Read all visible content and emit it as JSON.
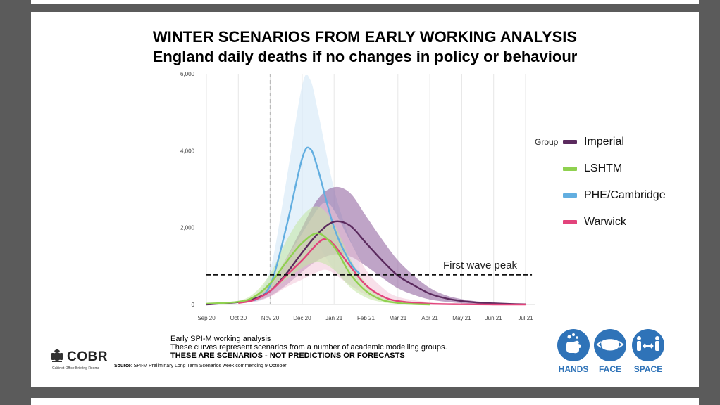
{
  "title_line1": "WINTER SCENARIOS FROM EARLY WORKING ANALYSIS",
  "title_line2": "England daily deaths if no changes in policy or behaviour",
  "chart_data": {
    "type": "line",
    "title": "England daily deaths if no changes in policy or behaviour",
    "x_ticks": [
      "Sep 20",
      "Oct 20",
      "Nov 20",
      "Dec 20",
      "Jan 21",
      "Feb 21",
      "Mar 21",
      "Apr 21",
      "May 21",
      "Jun 21",
      "Jul 21"
    ],
    "x_unit": "months since 1 Sep 2020",
    "y_ticks": [
      "0",
      "2,000",
      "4,000",
      "6,000"
    ],
    "ylim": [
      0,
      6000
    ],
    "legend_title": "Group",
    "marker_nov": 2.0,
    "series": [
      {
        "name": "Imperial",
        "color": "#5b2a5e",
        "band_color": "#8a5a99",
        "x": [
          0,
          1,
          1.5,
          2,
          2.5,
          3,
          3.5,
          4,
          4.5,
          5,
          5.5,
          6,
          6.5,
          7,
          7.5,
          8,
          8.5,
          9,
          9.5,
          10
        ],
        "values": [
          0,
          60,
          150,
          350,
          800,
          1350,
          1850,
          2150,
          2050,
          1600,
          1150,
          750,
          500,
          280,
          160,
          90,
          50,
          30,
          15,
          5
        ],
        "lower": [
          0,
          40,
          90,
          220,
          500,
          850,
          1150,
          1300,
          1250,
          1000,
          700,
          420,
          250,
          130,
          70,
          35,
          20,
          10,
          5,
          2
        ],
        "upper": [
          0,
          80,
          220,
          520,
          1200,
          2000,
          2750,
          3050,
          2900,
          2300,
          1700,
          1150,
          750,
          430,
          240,
          140,
          80,
          45,
          25,
          10
        ]
      },
      {
        "name": "LSHTM",
        "color": "#8fd14f",
        "band_color": "#c3e6a2",
        "x": [
          0,
          1,
          1.5,
          2,
          2.5,
          3,
          3.5,
          4,
          4.5,
          5,
          5.5,
          6,
          6.5,
          7
        ],
        "values": [
          20,
          70,
          200,
          550,
          1100,
          1600,
          1850,
          1500,
          800,
          350,
          120,
          40,
          10,
          0
        ],
        "lower": [
          10,
          40,
          120,
          350,
          650,
          950,
          1100,
          900,
          450,
          180,
          60,
          20,
          5,
          0
        ],
        "upper": [
          30,
          100,
          300,
          800,
          1650,
          2300,
          2550,
          2100,
          1200,
          550,
          200,
          70,
          20,
          0
        ]
      },
      {
        "name": "PHE/Cambridge",
        "color": "#62aee0",
        "band_color": "#cfe5f6",
        "x": [
          1.5,
          2,
          2.5,
          3,
          3.25,
          3.5,
          4,
          4.5,
          4.8
        ],
        "values": [
          100,
          500,
          2000,
          3800,
          4050,
          3500,
          2000,
          1100,
          800
        ],
        "lower": [
          50,
          250,
          900,
          1600,
          1800,
          1550,
          900,
          500,
          400
        ],
        "upper": [
          180,
          900,
          3200,
          5700,
          5850,
          5000,
          3000,
          1700,
          1200
        ]
      },
      {
        "name": "Warwick",
        "color": "#e2437b",
        "band_color": "#f2c6d8",
        "x": [
          1,
          1.5,
          2,
          2.5,
          3,
          3.5,
          3.75,
          4,
          4.5,
          5,
          5.5,
          6,
          7,
          8,
          9,
          10
        ],
        "values": [
          40,
          120,
          350,
          750,
          1150,
          1600,
          1700,
          1550,
          1000,
          500,
          220,
          90,
          20,
          5,
          0,
          0
        ],
        "lower": [
          25,
          70,
          200,
          450,
          650,
          850,
          900,
          800,
          500,
          250,
          100,
          40,
          10,
          2,
          0,
          0
        ],
        "upper": [
          60,
          200,
          550,
          1200,
          1850,
          2500,
          2650,
          2450,
          1650,
          900,
          450,
          200,
          60,
          20,
          5,
          0
        ]
      }
    ],
    "reference_line": {
      "label": "First wave peak",
      "value": 770
    }
  },
  "notes": {
    "line1": "Early SPI-M working analysis",
    "line2": "These curves represent scenarios from a number of academic modelling groups.",
    "line3": "THESE ARE SCENARIOS  - NOT PREDICTIONS OR FORECASTS"
  },
  "source": {
    "label": "Source",
    "text": ": SPI-M Preliminary Long Term Scenarios week commencing 9 October"
  },
  "cobr": {
    "name": "COBR",
    "sub": "Cabinet Office Briefing Rooms"
  },
  "hfs": {
    "hands": "HANDS",
    "face": "FACE",
    "space": "SPACE"
  },
  "colors": {
    "blue": "#2f73b8"
  }
}
